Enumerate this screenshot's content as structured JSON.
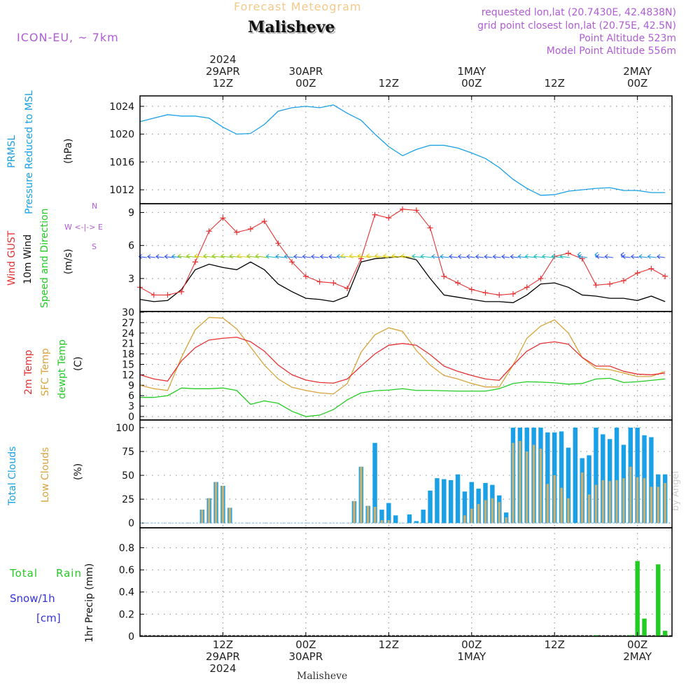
{
  "header": {
    "subtitle": "Forecast Meteogram",
    "location": "Malisheve",
    "model": "ICON-EU, ~ 7km",
    "requested": "requested lon,lat (20.7430E, 42.4838N)",
    "grid": "grid point closest lon,lat (20.75E, 42.5N)",
    "point_alt": "Point Altitude 523m",
    "model_alt": "Model Point Altitude 556m",
    "footer": "Malisheve",
    "watermark": "by Angel"
  },
  "colors": {
    "pressure": "#1aa0e6",
    "gust": "#e53333",
    "wind": "#000000",
    "temp2m": "#e53333",
    "sfc": "#d9a33a",
    "dewpt": "#22cc22",
    "total_clouds": "#1aa0e6",
    "low_clouds": "#c9b070",
    "rain": "#22cc22",
    "snow": "#3333dd",
    "purple": "#b05cd6"
  },
  "time_axis": {
    "top_ticks": [
      {
        "hour": 12,
        "l1": "2024",
        "l2": "29APR",
        "l3": "12Z"
      },
      {
        "hour": 24,
        "l1": "",
        "l2": "30APR",
        "l3": "00Z"
      },
      {
        "hour": 36,
        "l1": "",
        "l2": "",
        "l3": "12Z"
      },
      {
        "hour": 48,
        "l1": "",
        "l2": "1MAY",
        "l3": "00Z"
      },
      {
        "hour": 60,
        "l1": "",
        "l2": "",
        "l3": "12Z"
      },
      {
        "hour": 72,
        "l1": "",
        "l2": "2MAY",
        "l3": "00Z"
      }
    ],
    "bottom_ticks": [
      {
        "hour": 12,
        "l1": "12Z",
        "l2": "29APR",
        "l3": "2024"
      },
      {
        "hour": 24,
        "l1": "00Z",
        "l2": "30APR",
        "l3": ""
      },
      {
        "hour": 36,
        "l1": "12Z",
        "l2": "",
        "l3": ""
      },
      {
        "hour": 48,
        "l1": "00Z",
        "l2": "1MAY",
        "l3": ""
      },
      {
        "hour": 60,
        "l1": "12Z",
        "l2": "",
        "l3": ""
      },
      {
        "hour": 72,
        "l1": "00Z",
        "l2": "2MAY",
        "l3": ""
      }
    ]
  },
  "panel_labels": {
    "pressure": {
      "a": "PRMSL",
      "b": "Pressure Reduced to MSL",
      "unit": "(hPa)"
    },
    "wind": {
      "a": "Wind GUST",
      "b": "10m Wind",
      "c": "Speed and Direction",
      "unit": "(m/s)",
      "compass_n": "N",
      "compass_s": "S",
      "compass_we": "W <-|-> E"
    },
    "temp": {
      "a": "2m Temp",
      "b": "SFC Temp",
      "c": "dewpt Temp",
      "unit": "(C)"
    },
    "clouds": {
      "a": "Total Clouds",
      "b": "Low Clouds",
      "unit": "(%)"
    },
    "precip": {
      "a": "Total",
      "a2": "Rain",
      "b": "Snow/1h",
      "b2": "[cm]",
      "unit": "1hr Precip (mm)"
    }
  },
  "chart_data": [
    {
      "type": "line",
      "title": "PRMSL Pressure Reduced to MSL",
      "ylabel": "(hPa)",
      "ylim": [
        1010,
        1025.5
      ],
      "yticks": [
        1012,
        1016,
        1020,
        1024
      ],
      "x": [
        0,
        2,
        4,
        6,
        8,
        10,
        12,
        14,
        16,
        18,
        20,
        22,
        24,
        26,
        28,
        30,
        32,
        34,
        36,
        38,
        40,
        42,
        44,
        46,
        48,
        50,
        52,
        54,
        56,
        58,
        60,
        62,
        64,
        66,
        68,
        70,
        72,
        74,
        76
      ],
      "series": [
        {
          "name": "PRMSL",
          "values": [
            1021.8,
            1022.3,
            1022.8,
            1022.6,
            1022.6,
            1022.3,
            1021.0,
            1020.0,
            1020.1,
            1021.4,
            1023.3,
            1023.8,
            1024.0,
            1023.8,
            1024.2,
            1023.0,
            1022.0,
            1020.0,
            1018.2,
            1016.9,
            1017.8,
            1018.4,
            1018.4,
            1018.0,
            1017.3,
            1016.5,
            1015.2,
            1013.5,
            1012.2,
            1011.2,
            1011.3,
            1011.8,
            1012.0,
            1012.2,
            1012.3,
            1011.9,
            1011.9,
            1011.6,
            1011.6
          ]
        }
      ]
    },
    {
      "type": "line",
      "title": "Wind GUST / 10m Wind Speed and Direction",
      "ylabel": "(m/s)",
      "ylim": [
        0,
        9.8
      ],
      "yticks": [
        3,
        6,
        9
      ],
      "x": [
        0,
        2,
        4,
        6,
        8,
        10,
        12,
        14,
        16,
        18,
        20,
        22,
        24,
        26,
        28,
        30,
        32,
        34,
        36,
        38,
        40,
        42,
        44,
        46,
        48,
        50,
        52,
        54,
        56,
        58,
        60,
        62,
        64,
        66,
        68,
        70,
        72,
        74,
        76
      ],
      "series": [
        {
          "name": "Wind GUST",
          "values": [
            2.2,
            1.5,
            1.5,
            1.8,
            4.5,
            7.3,
            8.5,
            7.2,
            7.5,
            8.2,
            6.2,
            4.5,
            3.2,
            2.7,
            2.6,
            2.1,
            4.8,
            8.8,
            8.5,
            9.3,
            9.2,
            7.6,
            3.2,
            2.6,
            2.0,
            1.7,
            1.5,
            1.6,
            2.2,
            3.0,
            5.0,
            5.3,
            4.8,
            2.4,
            2.5,
            2.8,
            3.5,
            3.9,
            3.2
          ]
        },
        {
          "name": "10m Wind",
          "values": [
            1.1,
            0.9,
            1.0,
            2.0,
            3.8,
            4.3,
            4.0,
            3.8,
            4.5,
            3.8,
            2.5,
            1.8,
            1.2,
            1.1,
            0.9,
            1.4,
            4.5,
            4.8,
            4.9,
            5.0,
            4.7,
            3.0,
            1.5,
            1.3,
            1.1,
            0.9,
            0.9,
            0.8,
            1.5,
            2.5,
            2.6,
            2.2,
            1.5,
            1.4,
            1.2,
            1.2,
            1.0,
            1.4,
            0.9
          ]
        }
      ]
    },
    {
      "type": "line",
      "title": "2m Temp / SFC Temp / dewpt Temp",
      "ylabel": "(C)",
      "ylim": [
        -1,
        30.2
      ],
      "yticks": [
        0,
        3,
        6,
        9,
        12,
        15,
        18,
        21,
        24,
        27,
        30
      ],
      "x": [
        0,
        2,
        4,
        6,
        8,
        10,
        12,
        14,
        16,
        18,
        20,
        22,
        24,
        26,
        28,
        30,
        32,
        34,
        36,
        38,
        40,
        42,
        44,
        46,
        48,
        50,
        52,
        54,
        56,
        58,
        60,
        62,
        64,
        66,
        68,
        70,
        72,
        74,
        76
      ],
      "series": [
        {
          "name": "2m Temp",
          "values": [
            12.0,
            10.8,
            10.2,
            16.0,
            19.8,
            22.0,
            22.5,
            22.8,
            21.5,
            18.8,
            14.8,
            12.0,
            10.5,
            9.8,
            9.6,
            10.8,
            14.5,
            18.0,
            20.5,
            21.0,
            20.5,
            17.8,
            14.5,
            13.0,
            11.8,
            10.8,
            10.4,
            14.8,
            18.8,
            21.0,
            21.5,
            20.8,
            17.0,
            14.5,
            14.5,
            13.0,
            12.2,
            12.0,
            12.5
          ]
        },
        {
          "name": "SFC Temp",
          "values": [
            9.0,
            8.0,
            7.5,
            17.0,
            25.0,
            28.5,
            28.3,
            25.2,
            20.0,
            14.8,
            10.8,
            8.4,
            7.5,
            6.8,
            6.5,
            9.5,
            18.5,
            23.5,
            25.5,
            24.5,
            19.0,
            14.8,
            11.8,
            10.8,
            9.5,
            8.5,
            8.5,
            14.8,
            22.5,
            26.0,
            27.8,
            24.0,
            17.0,
            13.8,
            13.5,
            12.5,
            11.5,
            11.5,
            13.0
          ]
        },
        {
          "name": "dewpt Temp",
          "values": [
            5.5,
            5.5,
            6.0,
            8.2,
            8.0,
            8.0,
            8.2,
            7.5,
            3.5,
            4.5,
            3.8,
            1.5,
            0.0,
            0.4,
            2.0,
            4.8,
            6.8,
            7.4,
            7.6,
            8.0,
            7.5,
            7.5,
            7.4,
            7.3,
            7.3,
            7.3,
            8.0,
            9.5,
            10.0,
            9.9,
            9.7,
            9.3,
            9.5,
            10.8,
            11.0,
            9.8,
            10.0,
            10.4,
            10.8
          ]
        }
      ]
    },
    {
      "type": "bar",
      "title": "Total Clouds / Low Clouds",
      "ylabel": "(%)",
      "ylim": [
        -5,
        108
      ],
      "yticks": [
        0,
        25,
        50,
        75,
        100
      ],
      "x": [
        9,
        10,
        11,
        12,
        13,
        31,
        32,
        33,
        34,
        35,
        36,
        37,
        38,
        39,
        40,
        41,
        42,
        43,
        44,
        45,
        46,
        47,
        48,
        49,
        50,
        51,
        52,
        53,
        54,
        55,
        56,
        57,
        58,
        59,
        60,
        61,
        62,
        63,
        64,
        65,
        66,
        67,
        68,
        69,
        70,
        71,
        72,
        73,
        74,
        75,
        76
      ],
      "series": [
        {
          "name": "Total Clouds",
          "values": [
            14,
            26,
            43,
            39,
            16,
            23,
            59,
            18,
            84,
            14,
            21,
            8,
            0,
            9,
            2,
            14,
            34,
            47,
            46,
            45,
            51,
            33,
            43,
            36,
            42,
            40,
            29,
            11,
            100,
            100,
            100,
            100,
            100,
            95,
            95,
            96,
            79,
            100,
            68,
            71,
            100,
            93,
            88,
            100,
            82,
            100,
            100,
            92,
            90,
            51,
            51
          ]
        },
        {
          "name": "Low Clouds",
          "values": [
            14,
            26,
            43,
            39,
            16,
            23,
            59,
            18,
            17,
            3,
            3,
            0,
            0,
            0,
            0,
            0,
            0,
            0,
            0,
            0,
            0,
            8,
            15,
            20,
            24,
            26,
            22,
            6,
            84,
            86,
            75,
            82,
            78,
            41,
            50,
            37,
            26,
            0,
            53,
            30,
            40,
            45,
            44,
            45,
            47,
            59,
            48,
            47,
            38,
            38,
            42
          ]
        }
      ]
    },
    {
      "type": "bar",
      "title": "1hr Precip (mm)",
      "ylabel": "1hr Precip (mm)",
      "ylim": [
        0,
        0.98
      ],
      "yticks": [
        0,
        0.2,
        0.4,
        0.6,
        0.8
      ],
      "x": [
        66,
        71,
        72,
        73,
        74,
        75,
        76
      ],
      "series": [
        {
          "name": "Total Rain",
          "values": [
            0.01,
            0.01,
            0.68,
            0.16,
            0.0,
            0.65,
            0.05
          ]
        }
      ]
    }
  ]
}
